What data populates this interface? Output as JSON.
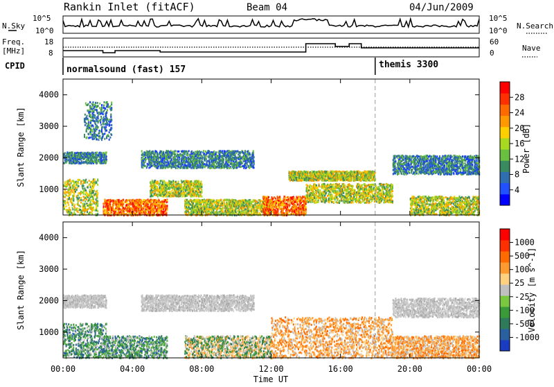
{
  "header": {
    "station": "Rankin Inlet (fitACF)",
    "beam": "Beam 04",
    "date": "04/Jun/2009"
  },
  "status_panels": {
    "nsky": {
      "left_label": "N.Sky",
      "right_label": "N.Search",
      "yticks_left": [
        "10^5",
        "10^0"
      ],
      "yticks_right": [
        "10^5",
        "10^0"
      ]
    },
    "freq": {
      "left_label_1": "Freq.",
      "left_label_2": "[MHz]",
      "right_label": "Nave",
      "yticks_left": [
        "18",
        "8"
      ],
      "yticks_right": [
        "60",
        "0"
      ]
    },
    "cpid": {
      "label": "CPID",
      "modes": [
        {
          "name": "normalsound (fast) 157",
          "start_hour": 0
        },
        {
          "name": "themis 3300",
          "start_hour": 18
        }
      ]
    }
  },
  "time_axis": {
    "label": "Time UT",
    "ticks": [
      "00:00",
      "04:00",
      "08:00",
      "12:00",
      "16:00",
      "20:00",
      "00:00"
    ]
  },
  "chart_data": [
    {
      "type": "heatmap",
      "name": "power",
      "ylabel": "Slant Range [km]",
      "xlabel": "Time UT",
      "xlim_hours": [
        0,
        24
      ],
      "ylim": [
        180,
        4500
      ],
      "yticks": [
        1000,
        2000,
        3000,
        4000
      ],
      "colorbar": {
        "label": "Power [dB]",
        "ticks": [
          "28",
          "24",
          "20",
          "16",
          "12",
          "8",
          "4"
        ],
        "colors": [
          "#0000ff",
          "#2050ff",
          "#2f6fb0",
          "#3a8a60",
          "#6abf40",
          "#a8d820",
          "#ffd000",
          "#ff9900",
          "#ff6a00",
          "#ff3000",
          "#ff0000"
        ]
      },
      "echo_bands": [
        {
          "range_km": [
            1850,
            2200
          ],
          "hours": [
            0,
            2.5
          ],
          "level": "weak"
        },
        {
          "range_km": [
            200,
            1350
          ],
          "hours": [
            0,
            2.0
          ],
          "level": "medium"
        },
        {
          "range_km": [
            200,
            700
          ],
          "hours": [
            2.3,
            6.0
          ],
          "level": "strong"
        },
        {
          "range_km": [
            2600,
            3800
          ],
          "hours": [
            1.2,
            2.8
          ],
          "level": "weak"
        },
        {
          "range_km": [
            1700,
            2250
          ],
          "hours": [
            4.5,
            11.0
          ],
          "level": "weak"
        },
        {
          "range_km": [
            200,
            700
          ],
          "hours": [
            7.0,
            12.0
          ],
          "level": "medium"
        },
        {
          "range_km": [
            800,
            1300
          ],
          "hours": [
            5.0,
            8.0
          ],
          "level": "medium"
        },
        {
          "range_km": [
            200,
            800
          ],
          "hours": [
            11.5,
            14.0
          ],
          "level": "strong"
        },
        {
          "range_km": [
            1300,
            1600
          ],
          "hours": [
            13.0,
            18.0
          ],
          "level": "medium"
        },
        {
          "range_km": [
            600,
            1200
          ],
          "hours": [
            14.0,
            19.0
          ],
          "level": "medium"
        },
        {
          "range_km": [
            1500,
            2100
          ],
          "hours": [
            19.0,
            24.0
          ],
          "level": "weak"
        },
        {
          "range_km": [
            200,
            800
          ],
          "hours": [
            20.0,
            24.0
          ],
          "level": "medium"
        }
      ]
    },
    {
      "type": "heatmap",
      "name": "velocity",
      "ylabel": "Slant Range [km]",
      "xlabel": "Time UT",
      "xlim_hours": [
        0,
        24
      ],
      "ylim": [
        180,
        4500
      ],
      "yticks": [
        1000,
        2000,
        3000,
        4000
      ],
      "colorbar": {
        "label": "Velocity [m s^-1]",
        "ticks": [
          "1000",
          "500",
          "100",
          "25",
          "-25",
          "-100",
          "-500",
          "-1000"
        ],
        "colors": [
          "#1a3cc0",
          "#2a5fa0",
          "#2f7a5a",
          "#3a9a3a",
          "#7ac840",
          "#c0c0c0",
          "#ffd080",
          "#ff9a30",
          "#ff6a00",
          "#ff3000",
          "#ff0000"
        ]
      },
      "echo_bands": [
        {
          "range_km": [
            1800,
            2200
          ],
          "hours": [
            0,
            2.5
          ],
          "level": "grey"
        },
        {
          "range_km": [
            200,
            1300
          ],
          "hours": [
            0,
            2.5
          ],
          "level": "green"
        },
        {
          "range_km": [
            200,
            900
          ],
          "hours": [
            2.3,
            6.0
          ],
          "level": "green"
        },
        {
          "range_km": [
            1700,
            2200
          ],
          "hours": [
            4.5,
            11.0
          ],
          "level": "grey"
        },
        {
          "range_km": [
            200,
            900
          ],
          "hours": [
            7.0,
            12.0
          ],
          "level": "mixed"
        },
        {
          "range_km": [
            200,
            1500
          ],
          "hours": [
            12.0,
            19.0
          ],
          "level": "orange"
        },
        {
          "range_km": [
            1500,
            2100
          ],
          "hours": [
            19.0,
            24.0
          ],
          "level": "grey"
        },
        {
          "range_km": [
            200,
            900
          ],
          "hours": [
            19.0,
            24.0
          ],
          "level": "orange"
        }
      ]
    }
  ]
}
